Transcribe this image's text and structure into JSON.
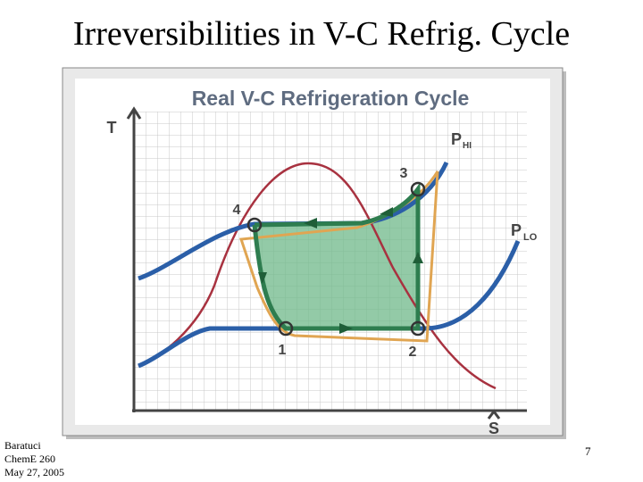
{
  "slide": {
    "title": "Irreversibilities in V-C Refrig. Cycle",
    "footer": [
      "Baratuci",
      "ChemE 260",
      "May 27, 2005"
    ],
    "page_number": "7"
  },
  "diagram": {
    "title": "Real V-C Refrigeration Cycle",
    "y_axis_label": "T",
    "x_axis_label": "S",
    "isobars": [
      {
        "label": "P",
        "subscript": "HI"
      },
      {
        "label": "P",
        "subscript": "LO"
      }
    ],
    "states": [
      "1",
      "2",
      "3",
      "4"
    ]
  }
}
